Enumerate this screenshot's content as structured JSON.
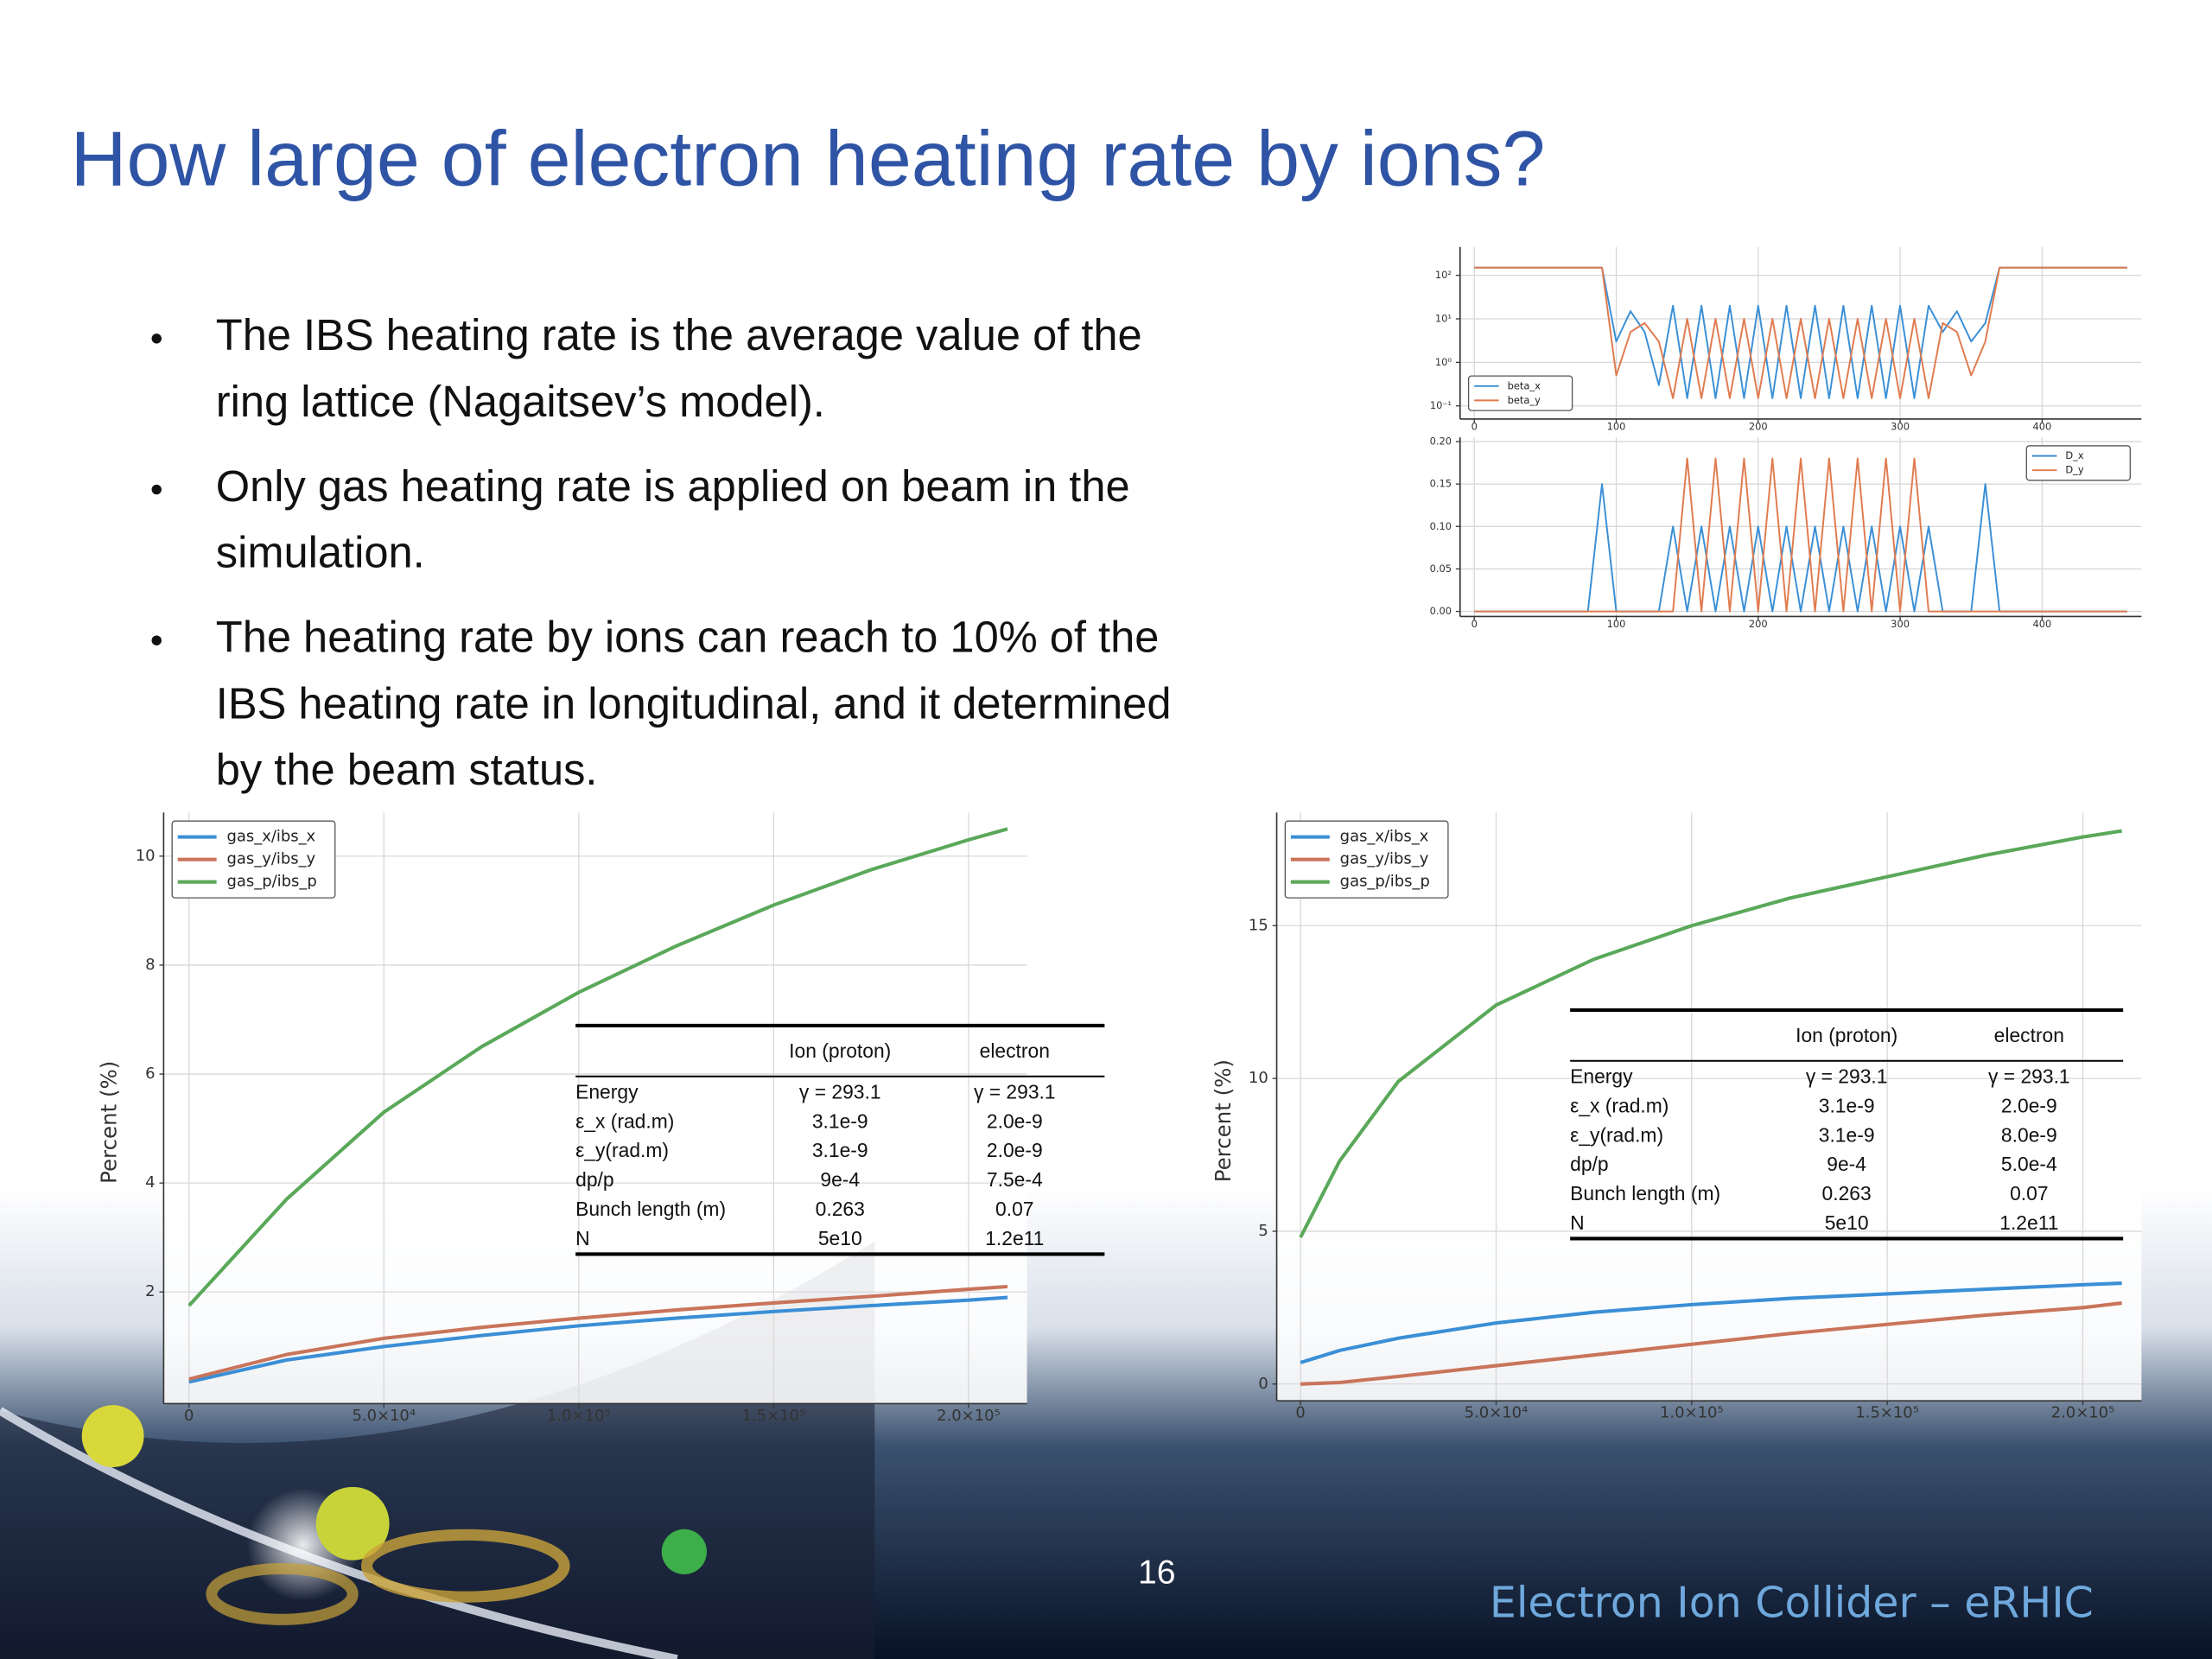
{
  "title": "How large of electron heating rate by ions?",
  "bullets": [
    [
      "The IBS heating rate is the average value of the",
      "ring lattice (Nagaitsev’s model)."
    ],
    [
      "Only gas heating rate is applied on beam in the",
      "simulation."
    ],
    [
      "The heating rate by ions can reach to 10% of the",
      "IBS heating rate in longitudinal, and it determined",
      "by the beam status."
    ]
  ],
  "page_number": "16",
  "footer": "Electron Ion Collider – eRHIC",
  "chart_data": [
    {
      "type": "line",
      "log_y": true,
      "grid": true,
      "legend": "lower left",
      "x": [
        0,
        80,
        90,
        100,
        110,
        120,
        130,
        140,
        150,
        160,
        170,
        180,
        190,
        200,
        210,
        220,
        230,
        240,
        250,
        260,
        270,
        280,
        290,
        300,
        310,
        320,
        330,
        340,
        350,
        360,
        370,
        460
      ],
      "series": [
        {
          "name": "beta_x",
          "color": "#3a8fd6",
          "values": [
            150,
            150,
            150,
            3,
            15,
            5,
            0.3,
            20,
            0.15,
            20,
            0.15,
            20,
            0.15,
            20,
            0.15,
            20,
            0.15,
            20,
            0.15,
            20,
            0.15,
            20,
            0.15,
            20,
            0.15,
            20,
            5,
            15,
            3,
            8,
            150,
            150
          ]
        },
        {
          "name": "beta_y",
          "color": "#e07b4f",
          "values": [
            150,
            150,
            150,
            0.5,
            5,
            8,
            3,
            0.15,
            10,
            0.15,
            10,
            0.15,
            10,
            0.15,
            10,
            0.15,
            10,
            0.15,
            10,
            0.15,
            10,
            0.15,
            10,
            0.15,
            10,
            0.15,
            8,
            5,
            0.5,
            3,
            150,
            150
          ]
        }
      ],
      "xlim": [
        -10,
        470
      ],
      "xticks": [
        0,
        100,
        200,
        300,
        400
      ],
      "ylim": [
        0.05,
        450
      ],
      "yticks": [
        {
          "value": 0.1,
          "label": "10⁻¹"
        },
        {
          "value": 1,
          "label": "10⁰"
        },
        {
          "value": 10,
          "label": "10¹"
        },
        {
          "value": 100,
          "label": "10²"
        }
      ]
    },
    {
      "type": "line",
      "grid": true,
      "legend": "upper right",
      "x": [
        0,
        80,
        90,
        100,
        110,
        120,
        130,
        140,
        150,
        160,
        170,
        180,
        190,
        200,
        210,
        220,
        230,
        240,
        250,
        260,
        270,
        280,
        290,
        300,
        310,
        320,
        330,
        340,
        350,
        360,
        370,
        460
      ],
      "series": [
        {
          "name": "D_x",
          "color": "#3a8fd6",
          "values": [
            0,
            0,
            0.15,
            0,
            0,
            0,
            0,
            0.1,
            0,
            0.1,
            0,
            0.1,
            0,
            0.1,
            0,
            0.1,
            0,
            0.1,
            0,
            0.1,
            0,
            0.1,
            0,
            0.1,
            0,
            0.1,
            0,
            0,
            0,
            0.15,
            0,
            0
          ]
        },
        {
          "name": "D_y",
          "color": "#e07b4f",
          "values": [
            0,
            0,
            0,
            0,
            0,
            0,
            0,
            0,
            0.18,
            0,
            0.18,
            0,
            0.18,
            0,
            0.18,
            0,
            0.18,
            0,
            0.18,
            0,
            0.18,
            0,
            0.18,
            0,
            0.18,
            0,
            0,
            0,
            0,
            0,
            0,
            0
          ]
        }
      ],
      "xlim": [
        -10,
        470
      ],
      "xticks": [
        0,
        100,
        200,
        300,
        400
      ],
      "ylim": [
        -0.006,
        0.205
      ],
      "yticks": [
        {
          "value": 0,
          "label": "0.00"
        },
        0.05,
        {
          "value": 0.1,
          "label": "0.10"
        },
        0.15,
        {
          "value": 0.2,
          "label": "0.20"
        }
      ]
    },
    {
      "type": "line",
      "grid": true,
      "legend": "upper left",
      "ylabel": "Percent (%)",
      "x": [
        0,
        25000,
        50000,
        75000,
        100000,
        125000,
        150000,
        175000,
        200000,
        210000
      ],
      "series": [
        {
          "name": "gas_x/ibs_x",
          "color": "#3a8fd6",
          "values": [
            0.35,
            0.75,
            1.0,
            1.2,
            1.38,
            1.52,
            1.64,
            1.75,
            1.85,
            1.9
          ]
        },
        {
          "name": "gas_y/ibs_y",
          "color": "#c9745a",
          "values": [
            0.4,
            0.85,
            1.15,
            1.35,
            1.52,
            1.67,
            1.8,
            1.92,
            2.05,
            2.1
          ]
        },
        {
          "name": "gas_p/ibs_p",
          "color": "#5aa85a",
          "values": [
            1.75,
            3.7,
            5.3,
            6.5,
            7.5,
            8.35,
            9.1,
            9.75,
            10.3,
            10.5
          ]
        }
      ],
      "xlim": [
        -6500,
        215000
      ],
      "xticks": [
        0,
        {
          "value": 50000,
          "label": "5.0×10⁴"
        },
        {
          "value": 100000,
          "label": "1.0×10⁵"
        },
        {
          "value": 150000,
          "label": "1.5×10⁵"
        },
        {
          "value": 200000,
          "label": "2.0×10⁵"
        }
      ],
      "ylim": [
        -0.05,
        10.8
      ],
      "yticks": [
        2,
        4,
        6,
        8,
        10
      ],
      "table": {
        "header": [
          "Ion (proton)",
          "electron"
        ],
        "rows": [
          [
            "Energy",
            "γ = 293.1",
            "γ = 293.1"
          ],
          [
            "ε_x (rad.m)",
            "3.1e-9",
            "2.0e-9"
          ],
          [
            "ε_y(rad.m)",
            "3.1e-9",
            "2.0e-9"
          ],
          [
            "dp/p",
            "9e-4",
            "7.5e-4"
          ],
          [
            "Bunch length (m)",
            "0.263",
            "0.07"
          ],
          [
            "N",
            "5e10",
            "1.2e11"
          ]
        ]
      }
    },
    {
      "type": "line",
      "grid": true,
      "legend": "upper left",
      "ylabel": "Percent (%)",
      "x": [
        0,
        10000,
        25000,
        50000,
        75000,
        100000,
        125000,
        150000,
        175000,
        200000,
        210000
      ],
      "series": [
        {
          "name": "gas_x/ibs_x",
          "color": "#3a8fd6",
          "values": [
            0.7,
            1.1,
            1.5,
            2.0,
            2.35,
            2.6,
            2.8,
            2.95,
            3.1,
            3.25,
            3.3
          ]
        },
        {
          "name": "gas_y/ibs_y",
          "color": "#c9745a",
          "values": [
            0,
            0.05,
            0.25,
            0.6,
            0.95,
            1.3,
            1.65,
            1.95,
            2.25,
            2.5,
            2.65
          ]
        },
        {
          "name": "gas_p/ibs_p",
          "color": "#5aa85a",
          "values": [
            4.8,
            7.3,
            9.9,
            12.4,
            13.9,
            15.0,
            15.9,
            16.6,
            17.3,
            17.9,
            18.1
          ]
        }
      ],
      "xlim": [
        -6100,
        215000
      ],
      "xticks": [
        0,
        {
          "value": 50000,
          "label": "5.0×10⁴"
        },
        {
          "value": 100000,
          "label": "1.0×10⁵"
        },
        {
          "value": 150000,
          "label": "1.5×10⁵"
        },
        {
          "value": 200000,
          "label": "2.0×10⁵"
        }
      ],
      "ylim": [
        -0.55,
        18.7
      ],
      "yticks": [
        0,
        5,
        10,
        15
      ],
      "table": {
        "header": [
          "Ion (proton)",
          "electron"
        ],
        "rows": [
          [
            "Energy",
            "γ = 293.1",
            "γ = 293.1"
          ],
          [
            "ε_x (rad.m)",
            "3.1e-9",
            "2.0e-9"
          ],
          [
            "ε_y(rad.m)",
            "3.1e-9",
            "8.0e-9"
          ],
          [
            "dp/p",
            "9e-4",
            "5.0e-4"
          ],
          [
            "Bunch length (m)",
            "0.263",
            "0.07"
          ],
          [
            "N",
            "5e10",
            "1.2e11"
          ]
        ]
      }
    }
  ]
}
